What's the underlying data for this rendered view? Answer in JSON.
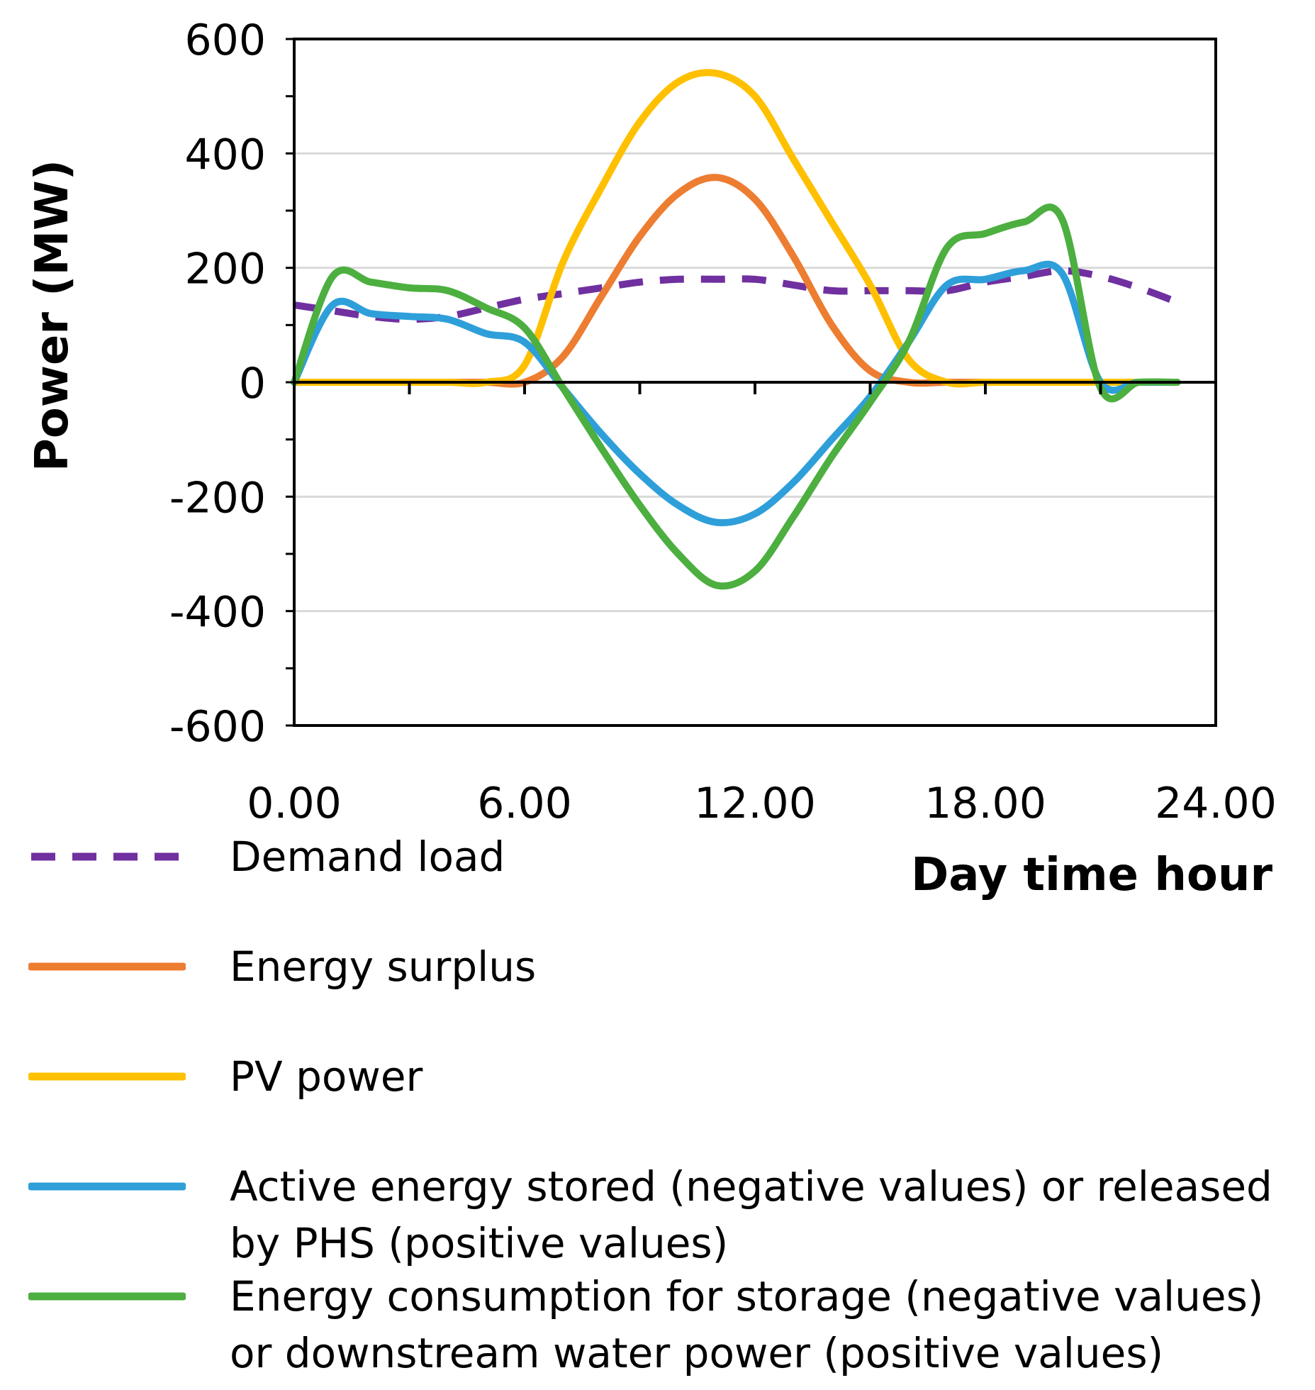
{
  "chart_data": {
    "type": "line",
    "title": "",
    "xlabel": "Day time hour",
    "ylabel": "Power (MW)",
    "xlim": [
      0,
      24
    ],
    "ylim": [
      -600,
      600
    ],
    "x_ticks": [
      {
        "value": 0,
        "label": "0.00"
      },
      {
        "value": 6,
        "label": "6.00"
      },
      {
        "value": 12,
        "label": "12.00"
      },
      {
        "value": 18,
        "label": "18.00"
      },
      {
        "value": 24,
        "label": "24.00"
      }
    ],
    "y_ticks": [
      {
        "value": 600,
        "label": "600"
      },
      {
        "value": 400,
        "label": "400"
      },
      {
        "value": 200,
        "label": "200"
      },
      {
        "value": 0,
        "label": "0"
      },
      {
        "value": -200,
        "label": "-200"
      },
      {
        "value": -400,
        "label": "-400"
      },
      {
        "value": -600,
        "label": "-600"
      }
    ],
    "grid": true,
    "legend_position": "bottom",
    "x": [
      0,
      1,
      2,
      3,
      4,
      5,
      6,
      7,
      8,
      9,
      10,
      11,
      12,
      13,
      14,
      15,
      16,
      17,
      18,
      19,
      20,
      21,
      22,
      23
    ],
    "series": [
      {
        "name": "Demand load",
        "color": "#7030a0",
        "style": "dashed",
        "values": [
          135,
          125,
          115,
          110,
          115,
          130,
          145,
          155,
          165,
          175,
          180,
          180,
          180,
          170,
          160,
          160,
          160,
          160,
          175,
          185,
          195,
          185,
          165,
          140
        ]
      },
      {
        "name": "Energy surplus",
        "color": "#ed7d31",
        "style": "solid",
        "values": [
          0,
          0,
          0,
          0,
          0,
          0,
          0,
          45,
          150,
          255,
          330,
          358,
          320,
          220,
          100,
          20,
          0,
          0,
          0,
          0,
          0,
          0,
          0,
          0
        ]
      },
      {
        "name": "PV power",
        "color": "#ffc000",
        "style": "solid",
        "values": [
          0,
          0,
          0,
          0,
          0,
          0,
          30,
          210,
          340,
          455,
          525,
          540,
          500,
          390,
          280,
          170,
          40,
          0,
          0,
          0,
          0,
          0,
          0,
          0
        ]
      },
      {
        "name": "Active energy stored (negative values) or released by PHS (positive values)",
        "color": "#2e9fd9",
        "style": "solid",
        "values": [
          0,
          135,
          120,
          115,
          110,
          85,
          70,
          -10,
          -90,
          -160,
          -215,
          -245,
          -230,
          -175,
          -100,
          -25,
          70,
          170,
          180,
          195,
          190,
          0,
          0,
          0
        ]
      },
      {
        "name": "Energy consumption for storage (negative values) or downstream water power (positive values)",
        "color": "#4caf3f",
        "style": "solid",
        "values": [
          0,
          185,
          175,
          165,
          160,
          130,
          95,
          -10,
          -115,
          -215,
          -300,
          -355,
          -330,
          -235,
          -130,
          -35,
          70,
          235,
          260,
          280,
          285,
          -10,
          0,
          0
        ]
      }
    ]
  }
}
